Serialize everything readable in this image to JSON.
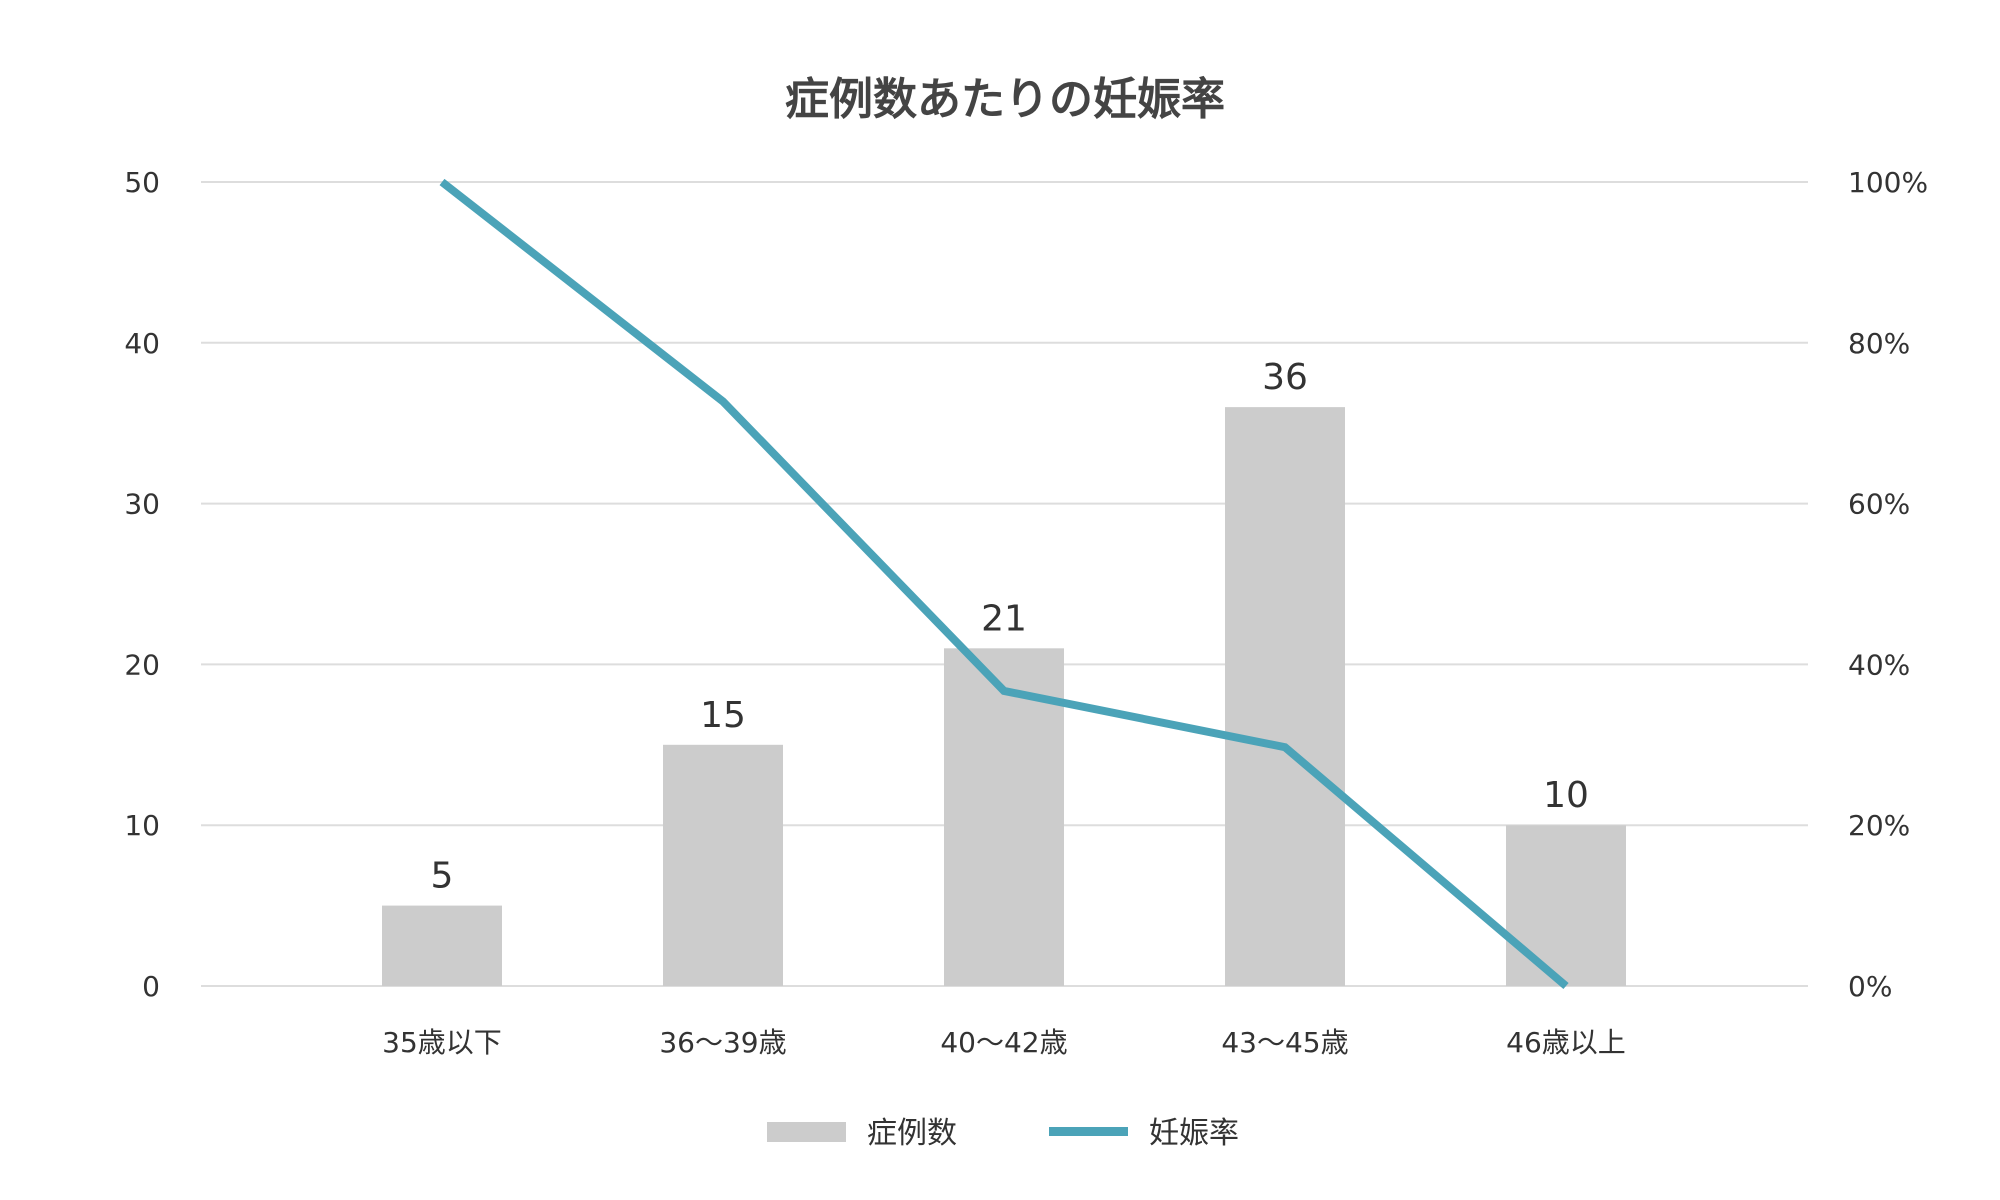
{
  "chart_data": {
    "type": "bar+line",
    "title": "症例数あたりの妊娠率",
    "categories": [
      "35歳以下",
      "36〜39歳",
      "40〜42歳",
      "43〜45歳",
      "46歳以上"
    ],
    "series": [
      {
        "name": "症例数",
        "type": "bar",
        "axis": "left",
        "values": [
          5,
          15,
          21,
          36,
          10
        ],
        "labels": [
          "5",
          "15",
          "21",
          "36",
          "10"
        ],
        "color": "#cccccc"
      },
      {
        "name": "妊娠率",
        "type": "line",
        "axis": "right",
        "values": [
          100,
          72.7,
          36.7,
          29.7,
          0
        ],
        "color": "#4ba3b8"
      }
    ],
    "y_left": {
      "ylim": [
        0,
        50
      ],
      "ticks": [
        "0",
        "10",
        "20",
        "30",
        "40",
        "50"
      ]
    },
    "y_right": {
      "ylim": [
        0,
        100
      ],
      "ticks": [
        "0%",
        "20%",
        "40%",
        "60%",
        "80%",
        "100%"
      ]
    },
    "grid": true,
    "legend": "bottom"
  }
}
